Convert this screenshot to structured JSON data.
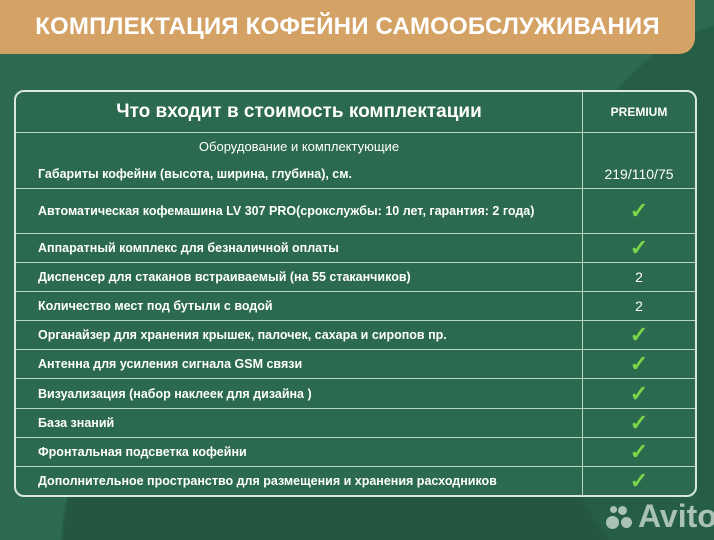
{
  "title": "КОМПЛЕКТАЦИЯ КОФЕЙНИ САМООБСЛУЖИВАНИЯ",
  "table": {
    "header": "Что входит в стоимость комплектации",
    "column": "PREMIUM",
    "section": "Оборудование и комплектующие",
    "rows": [
      {
        "label": "Габариты кофейни (высота, ширина, глубина), см.",
        "value": "219/110/75"
      },
      {
        "label": "Автоматическая кофемашина LV 307 PRO(срокслужбы: 10 лет, гарантия: 2 года)",
        "value": "✓"
      },
      {
        "label": "Аппаратный комплекс для безналичной оплаты",
        "value": "✓"
      },
      {
        "label": "Диспенсер для стаканов встраиваемый (на 55 стаканчиков)",
        "value": "2"
      },
      {
        "label": "Количество мест под бутыли с водой",
        "value": "2"
      },
      {
        "label": "Органайзер для хранения крышек, палочек, сахара и сиропов пр.",
        "value": "✓"
      },
      {
        "label": "Антенна для усиления сигнала GSM связи",
        "value": "✓"
      },
      {
        "label": "Визуализация (набор наклеек для дизайна )",
        "value": "✓"
      },
      {
        "label": "База знаний",
        "value": "✓"
      },
      {
        "label": "Фронтальная подсветка кофейни",
        "value": "✓"
      },
      {
        "label": "Дополнительное пространство для размещения и хранения расходников",
        "value": "✓"
      }
    ]
  },
  "watermark": "Avito",
  "colors": {
    "banner": "#d4a264",
    "background": "#2d6a4f",
    "check": "#7bd64a"
  }
}
